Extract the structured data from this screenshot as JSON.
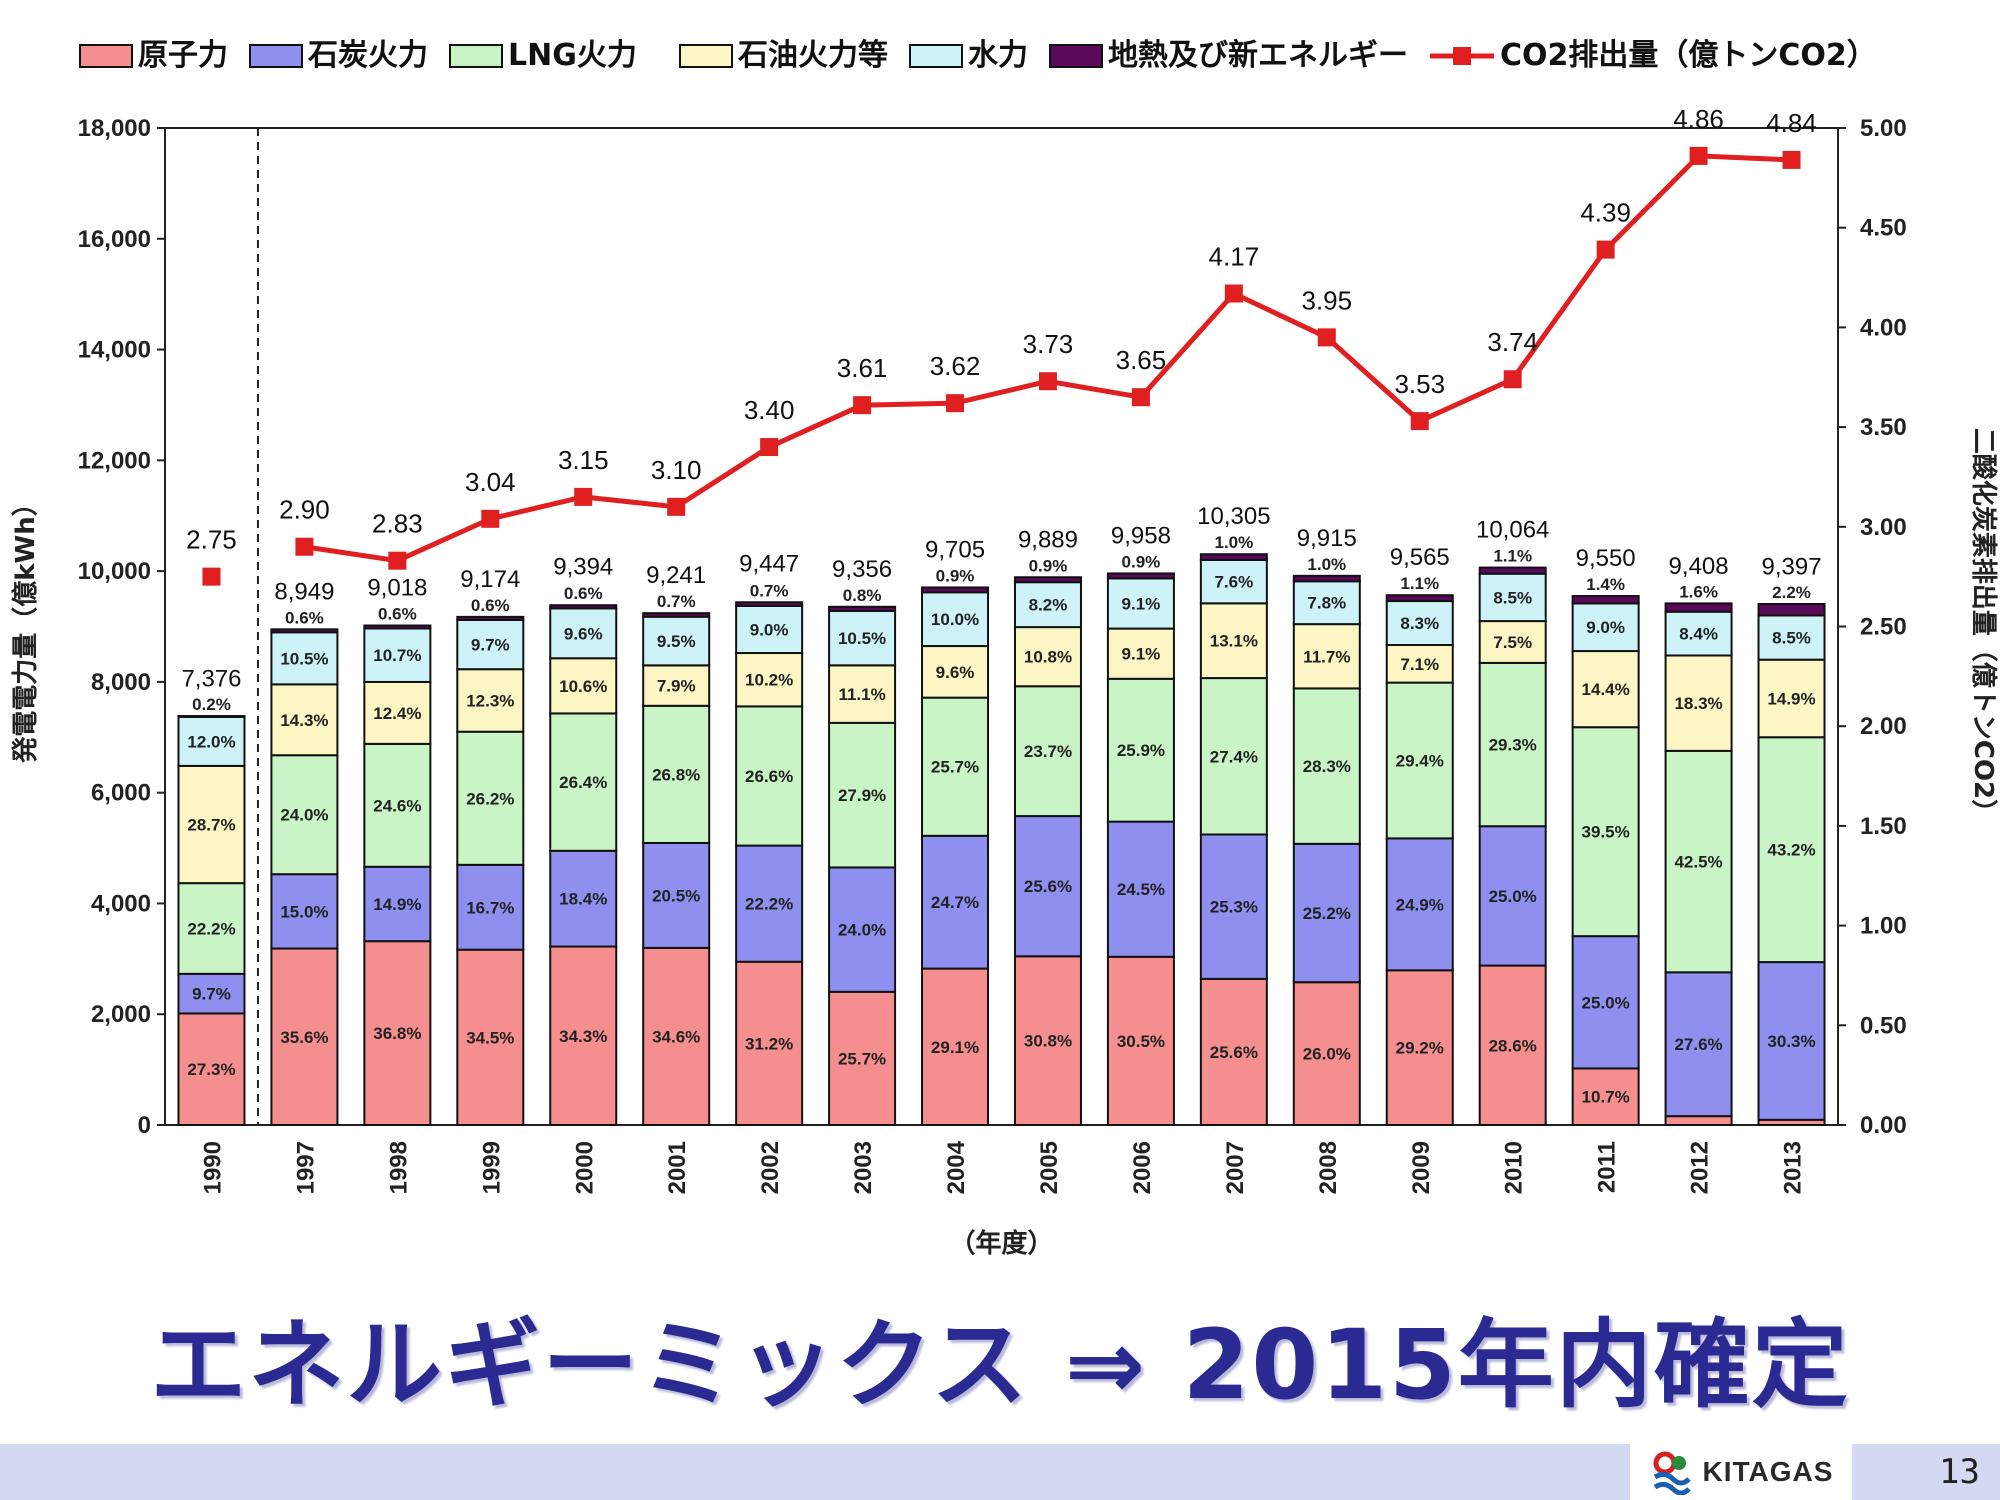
{
  "chart_data": {
    "type": "bar",
    "subtype": "stacked-bar-with-line",
    "categories": [
      "1990",
      "1997",
      "1998",
      "1999",
      "2000",
      "2001",
      "2002",
      "2003",
      "2004",
      "2005",
      "2006",
      "2007",
      "2008",
      "2009",
      "2010",
      "2011",
      "2012",
      "2013"
    ],
    "totals": [
      7376,
      8949,
      9018,
      9174,
      9394,
      9241,
      9447,
      9356,
      9705,
      9889,
      9958,
      10305,
      9915,
      9565,
      10064,
      9550,
      9408,
      9397
    ],
    "totals_text": [
      "7,376",
      "8,949",
      "9,018",
      "9,174",
      "9,394",
      "9,241",
      "9,447",
      "9,356",
      "9,705",
      "9,889",
      "9,958",
      "10,305",
      "9,915",
      "9,565",
      "10,064",
      "9,550",
      "9,408",
      "9,397"
    ],
    "series": [
      {
        "name": "原子力",
        "color": "#f58f8f",
        "values": [
          27.3,
          35.6,
          36.8,
          34.5,
          34.3,
          34.6,
          31.2,
          25.7,
          29.1,
          30.8,
          30.5,
          25.6,
          26.0,
          29.2,
          28.6,
          10.7,
          1.7,
          1.0
        ]
      },
      {
        "name": "石炭火力",
        "color": "#8f8ff0",
        "values": [
          9.7,
          15.0,
          14.9,
          16.7,
          18.4,
          20.5,
          22.2,
          24.0,
          24.7,
          25.6,
          24.5,
          25.3,
          25.2,
          24.9,
          25.0,
          25.0,
          27.6,
          30.3
        ]
      },
      {
        "name": "LNG火力",
        "color": "#c9f5c6",
        "values": [
          22.2,
          24.0,
          24.6,
          26.2,
          26.4,
          26.8,
          26.6,
          27.9,
          25.7,
          23.7,
          25.9,
          27.4,
          28.3,
          29.4,
          29.3,
          39.5,
          42.5,
          43.2
        ]
      },
      {
        "name": "石油火力等",
        "color": "#fbf6c4",
        "values": [
          28.7,
          14.3,
          12.4,
          12.3,
          10.6,
          7.9,
          10.2,
          11.1,
          9.6,
          10.8,
          9.1,
          13.1,
          11.7,
          7.1,
          7.5,
          14.4,
          18.3,
          14.9
        ]
      },
      {
        "name": "水力",
        "color": "#cdf3f9",
        "values": [
          12.0,
          10.5,
          10.7,
          9.7,
          9.6,
          9.5,
          9.0,
          10.5,
          10.0,
          8.2,
          9.1,
          7.6,
          7.8,
          8.3,
          8.5,
          9.0,
          8.4,
          8.5
        ]
      },
      {
        "name": "地熱及び新エネルギー",
        "color": "#5a0a5a",
        "values": [
          0.2,
          0.6,
          0.6,
          0.6,
          0.6,
          0.7,
          0.7,
          0.8,
          0.9,
          0.9,
          0.9,
          1.0,
          1.0,
          1.1,
          1.1,
          1.4,
          1.6,
          2.2
        ]
      }
    ],
    "line_series": {
      "name": "CO2排出量（億トンCO2）",
      "color": "#e02020",
      "values": [
        2.75,
        2.9,
        2.83,
        3.04,
        3.15,
        3.1,
        3.4,
        3.61,
        3.62,
        3.73,
        3.65,
        4.17,
        3.95,
        3.53,
        3.74,
        4.39,
        4.86,
        4.84
      ],
      "labels": [
        "2.75",
        "2.90",
        "2.83",
        "3.04",
        "3.15",
        "3.10",
        "3.40",
        "3.61",
        "3.62",
        "3.73",
        "3.65",
        "4.17",
        "3.95",
        "3.53",
        "3.74",
        "4.39",
        "4.86",
        "4.84"
      ]
    },
    "ylim_left": [
      0,
      18000
    ],
    "ylim_right": [
      0,
      5.0
    ],
    "left_ticks": [
      "0",
      "2,000",
      "4,000",
      "6,000",
      "8,000",
      "10,000",
      "12,000",
      "14,000",
      "16,000",
      "18,000"
    ],
    "right_ticks": [
      "0.00",
      "0.50",
      "1.00",
      "1.50",
      "2.00",
      "2.50",
      "3.00",
      "3.50",
      "4.00",
      "4.50",
      "5.00"
    ],
    "ylabel_left": "発電電力量（億kWh）",
    "ylabel_right": "二酸化炭素排出量（億トンCO2）",
    "xlabel": "（年度）",
    "legend_position": "top",
    "grid": false
  },
  "headline": "エネルギーミックス ⇒ 2015年内確定",
  "footer": {
    "logo_text": "KITAGAS",
    "page_number": "13"
  }
}
